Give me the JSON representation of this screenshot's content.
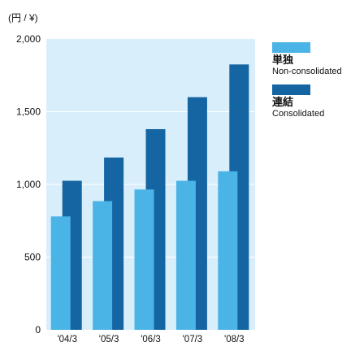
{
  "chart_data": {
    "type": "bar",
    "unit_label": "(円 / ¥)",
    "categories": [
      "'04/3",
      "'05/3",
      "'06/3",
      "'07/3",
      "'08/3"
    ],
    "series": [
      {
        "name_ja": "単独",
        "name_en": "Non-consolidated",
        "color": "#4bb4e6",
        "values": [
          780,
          885,
          965,
          1025,
          1090
        ]
      },
      {
        "name_ja": "連結",
        "name_en": "Consolidated",
        "color": "#1565a3",
        "values": [
          1025,
          1185,
          1380,
          1600,
          1825
        ]
      }
    ],
    "ylim": [
      0,
      2000
    ],
    "yticks": [
      0,
      500,
      1000,
      1500,
      2000
    ],
    "ytick_labels": [
      "0",
      "500",
      "1,000",
      "1,500",
      "2,000"
    ],
    "plot_background": "#d9eefb",
    "gridline_color": "#ffffff",
    "legend_position": "right"
  }
}
